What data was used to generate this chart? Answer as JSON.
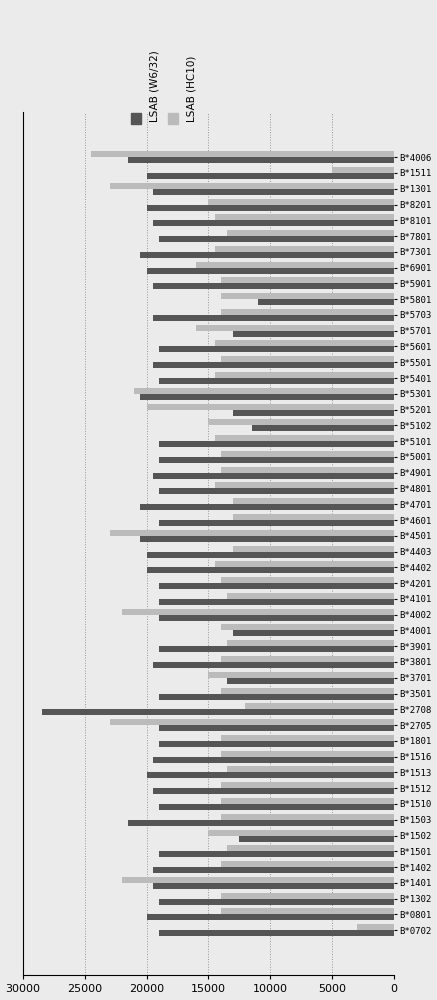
{
  "categories": [
    "B*4006",
    "B*1511",
    "B*1301",
    "B*8201",
    "B*8101",
    "B*7801",
    "B*7301",
    "B*6901",
    "B*5901",
    "B*5801",
    "B*5703",
    "B*5701",
    "B*5601",
    "B*5501",
    "B*5401",
    "B*5301",
    "B*5201",
    "B*5102",
    "B*5101",
    "B*5001",
    "B*4901",
    "B*4801",
    "B*4701",
    "B*4601",
    "B*4501",
    "B*4403",
    "B*4402",
    "B*4201",
    "B*4101",
    "B*4002",
    "B*4001",
    "B*3901",
    "B*3801",
    "B*3701",
    "B*3501",
    "B*2708",
    "B*2705",
    "B*1801",
    "B*1516",
    "B*1513",
    "B*1512",
    "B*1510",
    "B*1503",
    "B*1502",
    "B*1501",
    "B*1402",
    "B*1401",
    "B*1302",
    "B*0801",
    "B*0702"
  ],
  "w6_32": [
    21500,
    20000,
    19500,
    20000,
    19500,
    19000,
    20500,
    20000,
    19500,
    11000,
    19500,
    13000,
    19000,
    19500,
    19000,
    20500,
    13000,
    11500,
    19000,
    19000,
    19500,
    19000,
    20500,
    19000,
    20500,
    20000,
    20000,
    19000,
    19000,
    19000,
    13000,
    19000,
    19500,
    13500,
    19000,
    28500,
    19000,
    19000,
    19500,
    20000,
    19500,
    19000,
    21500,
    12500,
    19000,
    19500,
    19500,
    19000,
    20000,
    19000
  ],
  "hc10": [
    24500,
    5000,
    23000,
    15000,
    14500,
    13500,
    14500,
    16000,
    14000,
    14000,
    14000,
    16000,
    14500,
    14000,
    14500,
    21000,
    20000,
    15000,
    14500,
    14000,
    14000,
    14500,
    13000,
    13000,
    23000,
    13000,
    14500,
    14000,
    13500,
    22000,
    14000,
    13500,
    14000,
    15000,
    14000,
    12000,
    23000,
    14000,
    14000,
    13500,
    14000,
    14000,
    14000,
    15000,
    13500,
    14000,
    22000,
    14000,
    14000,
    3000
  ],
  "color_w632": "#555555",
  "color_hc10": "#bbbbbb",
  "legend_w632": "LSAB (W6/32)",
  "legend_hc10": "LSAB (HC10)",
  "xlim_left": 30000,
  "xlim_right": 0,
  "xticks": [
    30000,
    25000,
    20000,
    15000,
    10000,
    5000,
    0
  ],
  "background_color": "#ebebeb",
  "bar_height": 0.38
}
